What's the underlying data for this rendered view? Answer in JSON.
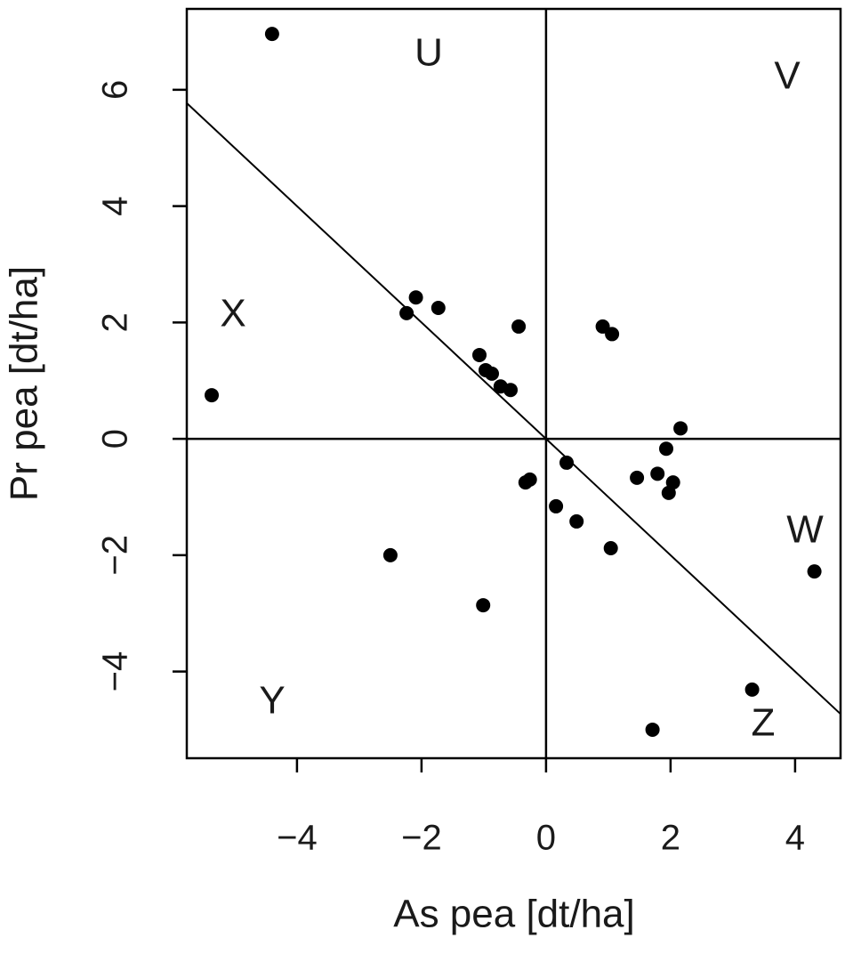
{
  "chart_data": {
    "type": "scatter",
    "x_label": "As pea [dt/ha]",
    "y_label": "Pr pea [dt/ha]",
    "color": "#000000",
    "x": [
      -4.4,
      -5.37,
      -2.24,
      -2.09,
      -1.73,
      -0.44,
      -1.07,
      -0.97,
      -0.87,
      -0.73,
      -0.57,
      0.91,
      1.06,
      2.16,
      1.93,
      1.46,
      1.79,
      2.04,
      1.97,
      0.33,
      -0.33,
      -0.26,
      0.16,
      0.49,
      1.04,
      -2.5,
      -1.01,
      4.31,
      3.31,
      1.71
    ],
    "values": [
      6.96,
      0.75,
      2.16,
      2.43,
      2.25,
      1.93,
      1.44,
      1.18,
      1.12,
      0.9,
      0.84,
      1.93,
      1.8,
      0.18,
      -0.17,
      -0.67,
      -0.6,
      -0.75,
      -0.93,
      -0.41,
      -0.75,
      -0.7,
      -1.16,
      -1.42,
      -1.88,
      -2.0,
      -2.86,
      -2.28,
      -4.31,
      -5.0
    ],
    "xlim": [
      -5.77,
      4.73
    ],
    "ylim": [
      -5.49,
      7.39
    ],
    "xticks": [
      {
        "value": -4,
        "label": "−4"
      },
      {
        "value": -2,
        "label": "−2"
      },
      0,
      2,
      4
    ],
    "yticks": [
      {
        "value": -4,
        "label": "−4"
      },
      {
        "value": -2,
        "label": "−2"
      },
      0,
      2,
      4,
      6
    ],
    "hlines": [
      0
    ],
    "vlines": [
      0
    ],
    "reference_line": {
      "slope": -1,
      "intercept": 0
    },
    "annotations": [
      "U",
      "V",
      "X",
      "W",
      "Y",
      "Z"
    ]
  }
}
